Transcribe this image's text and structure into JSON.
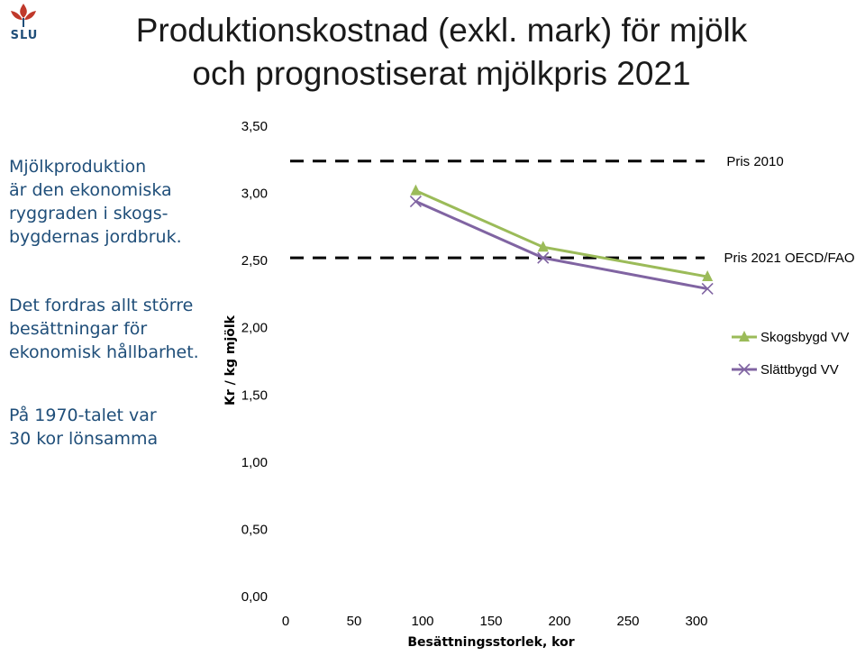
{
  "header": {
    "title_line1": "Produktionskostnad (exkl. mark) för mjölk",
    "title_line2": "och prognostiserat mjölkpris 2021",
    "logo_text": "SLU"
  },
  "sidebar": {
    "p1": [
      "Mjölkproduktion",
      "är den ekonomiska",
      "ryggraden i skogs-",
      "bygdernas jordbruk."
    ],
    "p2": [
      "Det fordras allt större",
      "besättningar för",
      "ekonomisk hållbarhet."
    ],
    "p3": [
      "På 1970-talet var",
      "30 kor lönsamma"
    ]
  },
  "colors": {
    "skogsbygd": "#9bbb59",
    "slattbygd": "#8064a2",
    "reference": "#000000",
    "text_blue": "#1f4e79"
  },
  "chart_data": {
    "type": "line",
    "xlabel": "Besättningsstorlek, kor",
    "ylabel": "Kr / kg mjölk",
    "xlim": [
      0,
      300
    ],
    "ylim": [
      0,
      3.5
    ],
    "x_ticks": [
      "0",
      "50",
      "100",
      "150",
      "200",
      "250",
      "300"
    ],
    "y_ticks": [
      "0,00",
      "0,50",
      "1,00",
      "1,50",
      "2,00",
      "2,50",
      "3,00",
      "3,50"
    ],
    "grid": false,
    "legend_position": "right",
    "series": [
      {
        "name": "Skogsbygd VV",
        "marker": "triangle",
        "color": "#9bbb59",
        "x": [
          95,
          188,
          308
        ],
        "y": [
          3.02,
          2.6,
          2.38
        ]
      },
      {
        "name": "Slättbygd VV",
        "marker": "x",
        "color": "#8064a2",
        "x": [
          95,
          188,
          308
        ],
        "y": [
          2.94,
          2.52,
          2.29
        ]
      }
    ],
    "reference_lines": [
      {
        "label": "Pris 2010",
        "y": 3.24,
        "style": "dashed"
      },
      {
        "label": "Pris 2021 OECD/FAO",
        "y": 2.52,
        "style": "dashed"
      }
    ]
  }
}
